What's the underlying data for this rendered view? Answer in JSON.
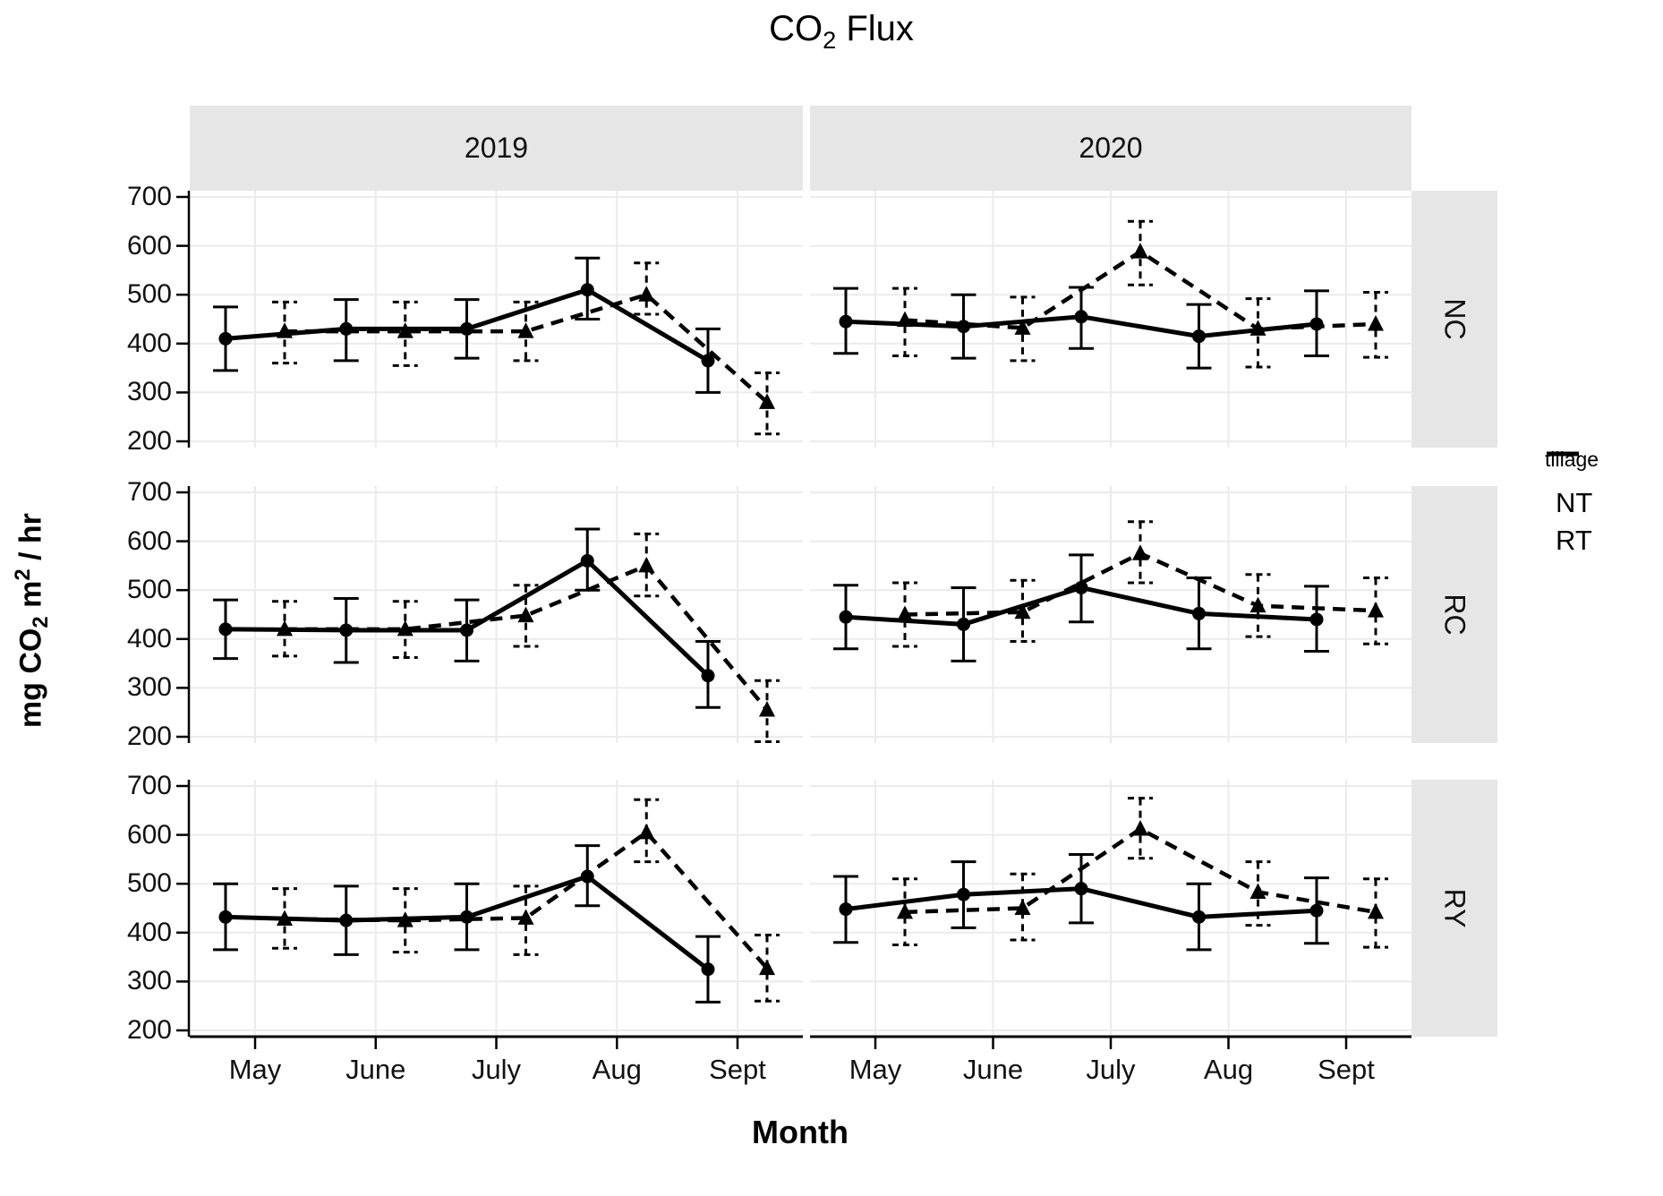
{
  "title": {
    "main": "CO",
    "sub": "2",
    "rest": " Flux"
  },
  "axes": {
    "x_label": "Month",
    "y_label": {
      "p1": "mg CO",
      "sub": "2",
      "p2": " m",
      "sup": "2",
      "p3": " / hr"
    },
    "y_ticks": [
      700,
      600,
      500,
      400,
      300,
      200
    ],
    "x_ticks": [
      "May",
      "June",
      "July",
      "Aug",
      "Sept"
    ]
  },
  "legend": {
    "title": "tillage",
    "entries": [
      {
        "label": "NT",
        "line": "solid"
      },
      {
        "label": "RT",
        "line": "dashed"
      }
    ]
  },
  "colors": {
    "ink": "#000000",
    "grid": "#EBEBEB",
    "strip_bg": "#E6E6E6",
    "panel_bg": "#FFFFFF"
  },
  "chart_data": {
    "type": "line",
    "title": "CO2 Flux",
    "xlabel": "Month",
    "ylabel": "mg CO2 m2 / hr",
    "x_categories": [
      "May",
      "June",
      "July",
      "Aug",
      "Sept"
    ],
    "ylim": [
      200,
      700
    ],
    "grid": true,
    "legend_position": "right",
    "facet_cols": [
      "2019",
      "2020"
    ],
    "facet_rows": [
      "NC",
      "RC",
      "RY"
    ],
    "panels": [
      {
        "row": "NC",
        "col": "2019",
        "series": [
          {
            "name": "NT",
            "line": "solid",
            "marker": "circle",
            "values": [
              410,
              430,
              430,
              510,
              365
            ],
            "err_low": [
              345,
              365,
              370,
              450,
              300
            ],
            "err_high": [
              475,
              490,
              490,
              575,
              430
            ]
          },
          {
            "name": "RT",
            "line": "dashed",
            "marker": "triangle",
            "values": [
              425,
              425,
              425,
              500,
              280
            ],
            "err_low": [
              360,
              355,
              365,
              460,
              215
            ],
            "err_high": [
              485,
              485,
              485,
              565,
              340
            ]
          }
        ]
      },
      {
        "row": "NC",
        "col": "2020",
        "series": [
          {
            "name": "NT",
            "line": "solid",
            "marker": "circle",
            "values": [
              445,
              435,
              455,
              415,
              440
            ],
            "err_low": [
              380,
              370,
              390,
              350,
              375
            ],
            "err_high": [
              513,
              500,
              515,
              480,
              508
            ]
          },
          {
            "name": "RT",
            "line": "dashed",
            "marker": "triangle",
            "values": [
              448,
              432,
              588,
              430,
              440
            ],
            "err_low": [
              375,
              365,
              520,
              352,
              372
            ],
            "err_high": [
              513,
              495,
              650,
              492,
              505
            ]
          }
        ]
      },
      {
        "row": "RC",
        "col": "2019",
        "series": [
          {
            "name": "NT",
            "line": "solid",
            "marker": "circle",
            "values": [
              420,
              418,
              418,
              560,
              325
            ],
            "err_low": [
              360,
              352,
              355,
              500,
              260
            ],
            "err_high": [
              480,
              483,
              480,
              625,
              395
            ]
          },
          {
            "name": "RT",
            "line": "dashed",
            "marker": "triangle",
            "values": [
              420,
              420,
              448,
              550,
              255
            ],
            "err_low": [
              365,
              362,
              385,
              488,
              190
            ],
            "err_high": [
              477,
              477,
              510,
              615,
              315
            ]
          }
        ]
      },
      {
        "row": "RC",
        "col": "2020",
        "series": [
          {
            "name": "NT",
            "line": "solid",
            "marker": "circle",
            "values": [
              445,
              430,
              505,
              452,
              440
            ],
            "err_low": [
              380,
              355,
              435,
              380,
              375
            ],
            "err_high": [
              510,
              505,
              572,
              525,
              508
            ]
          },
          {
            "name": "RT",
            "line": "dashed",
            "marker": "triangle",
            "values": [
              450,
              455,
              575,
              468,
              458
            ],
            "err_low": [
              385,
              395,
              515,
              405,
              390
            ],
            "err_high": [
              515,
              520,
              640,
              532,
              525
            ]
          }
        ]
      },
      {
        "row": "RY",
        "col": "2019",
        "series": [
          {
            "name": "NT",
            "line": "solid",
            "marker": "circle",
            "values": [
              432,
              425,
              432,
              515,
              325
            ],
            "err_low": [
              365,
              355,
              365,
              455,
              258
            ],
            "err_high": [
              500,
              495,
              500,
              578,
              392
            ]
          },
          {
            "name": "RT",
            "line": "dashed",
            "marker": "triangle",
            "values": [
              428,
              425,
              430,
              605,
              327
            ],
            "err_low": [
              368,
              360,
              355,
              545,
              260
            ],
            "err_high": [
              490,
              490,
              495,
              672,
              395
            ]
          }
        ]
      },
      {
        "row": "RY",
        "col": "2020",
        "series": [
          {
            "name": "NT",
            "line": "solid",
            "marker": "circle",
            "values": [
              448,
              478,
              490,
              432,
              445
            ],
            "err_low": [
              380,
              410,
              420,
              365,
              378
            ],
            "err_high": [
              515,
              545,
              560,
              500,
              512
            ]
          },
          {
            "name": "RT",
            "line": "dashed",
            "marker": "triangle",
            "values": [
              442,
              450,
              612,
              483,
              442
            ],
            "err_low": [
              375,
              385,
              552,
              415,
              370
            ],
            "err_high": [
              510,
              520,
              675,
              545,
              510
            ]
          }
        ]
      }
    ]
  }
}
